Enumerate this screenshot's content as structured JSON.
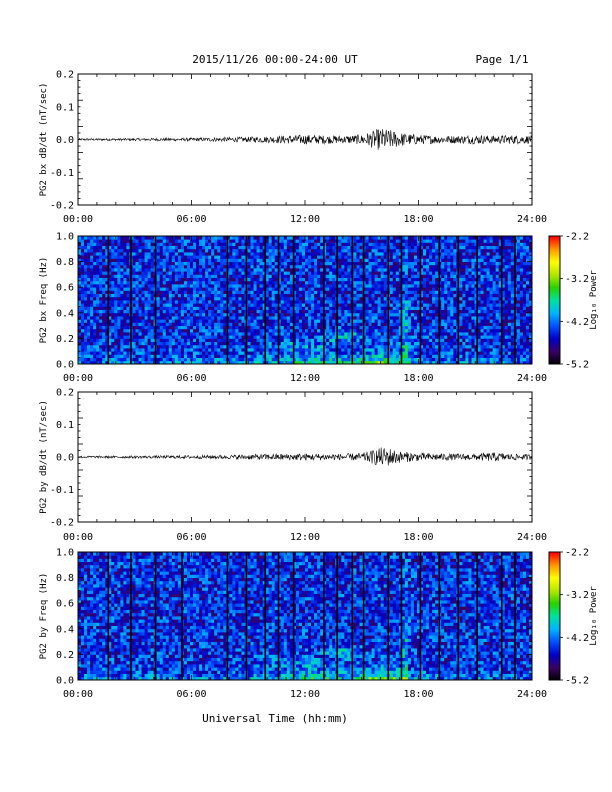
{
  "header": {
    "title": "2015/11/26  00:00-24:00 UT",
    "page_label": "Page 1/1"
  },
  "xlabel": "Universal Time (hh:mm)",
  "colors": {
    "colormap": [
      "#000000",
      "#3a0064",
      "#0000c8",
      "#0050ff",
      "#00b4ff",
      "#00e0a0",
      "#28d200",
      "#b4e600",
      "#ffff00",
      "#ff9600",
      "#ff0000"
    ],
    "gap_bar": "#000000"
  },
  "chart_data": [
    {
      "type": "line",
      "ylabel": "PG2 bx dB/dt (nT/sec)",
      "xlim_hours": [
        0,
        24
      ],
      "x_ticks": [
        "00:00",
        "06:00",
        "12:00",
        "18:00",
        "24:00"
      ],
      "ylim": [
        -0.2,
        0.2
      ],
      "y_ticks": [
        "0.2",
        "0.1",
        "0.0",
        "-0.1",
        "-0.2"
      ],
      "envelope": {
        "time_hours": [
          0,
          4,
          6,
          9,
          10,
          11,
          12,
          13,
          14,
          15,
          15.5,
          16,
          16.5,
          17,
          17.5,
          18,
          19,
          20,
          21,
          22,
          23,
          24
        ],
        "amplitude": [
          0.003,
          0.004,
          0.005,
          0.008,
          0.01,
          0.012,
          0.015,
          0.013,
          0.012,
          0.015,
          0.025,
          0.035,
          0.03,
          0.022,
          0.018,
          0.015,
          0.012,
          0.012,
          0.014,
          0.012,
          0.014,
          0.012
        ]
      }
    },
    {
      "type": "heatmap",
      "ylabel": "PG2 bx Freq (Hz)",
      "xlim_hours": [
        0,
        24
      ],
      "x_ticks": [
        "00:00",
        "06:00",
        "12:00",
        "18:00",
        "24:00"
      ],
      "ylim": [
        0,
        1.0
      ],
      "y_ticks": [
        "1.0",
        "0.8",
        "0.6",
        "0.4",
        "0.2",
        "0.0"
      ],
      "colorbar": {
        "label": "Log₁₀ Power",
        "range": [
          -5.2,
          -2.2
        ],
        "ticks": [
          "-2.2",
          "-3.2",
          "-4.2",
          "-5.2"
        ]
      },
      "data_gaps_hours": [
        1.6,
        2.8,
        4.1,
        7.9,
        8.9,
        9.9,
        10.6,
        11.4,
        13.0,
        13.7,
        14.5,
        15.1,
        16.4,
        17.1,
        18.1,
        19.1,
        20.1,
        21.1,
        22.4,
        23.1
      ]
    },
    {
      "type": "line",
      "ylabel": "PG2 by dB/dt (nT/sec)",
      "xlim_hours": [
        0,
        24
      ],
      "x_ticks": [
        "00:00",
        "06:00",
        "12:00",
        "18:00",
        "24:00"
      ],
      "ylim": [
        -0.2,
        0.2
      ],
      "y_ticks": [
        "0.2",
        "0.1",
        "0.0",
        "-0.1",
        "-0.2"
      ],
      "envelope": {
        "time_hours": [
          0,
          4,
          6,
          8,
          9,
          10,
          11,
          12,
          13,
          14,
          15,
          15.5,
          16,
          16.5,
          17,
          18,
          19,
          20,
          21,
          22,
          23,
          24
        ],
        "amplitude": [
          0.003,
          0.004,
          0.005,
          0.006,
          0.008,
          0.009,
          0.01,
          0.011,
          0.01,
          0.01,
          0.012,
          0.02,
          0.03,
          0.028,
          0.018,
          0.012,
          0.011,
          0.01,
          0.01,
          0.014,
          0.01,
          0.008
        ]
      }
    },
    {
      "type": "heatmap",
      "ylabel": "PG2 by Freq (Hz)",
      "xlim_hours": [
        0,
        24
      ],
      "x_ticks": [
        "00:00",
        "06:00",
        "12:00",
        "18:00",
        "24:00"
      ],
      "ylim": [
        0,
        1.0
      ],
      "y_ticks": [
        "1.0",
        "0.8",
        "0.6",
        "0.4",
        "0.2",
        "0.0"
      ],
      "colorbar": {
        "label": "Log₁₀ Power",
        "range": [
          -5.2,
          -2.2
        ],
        "ticks": [
          "-2.2",
          "-3.2",
          "-4.2",
          "-5.2"
        ]
      },
      "data_gaps_hours": [
        1.6,
        2.8,
        4.1,
        5.5,
        7.9,
        8.9,
        9.9,
        10.6,
        11.4,
        13.0,
        13.7,
        14.5,
        15.1,
        16.4,
        17.1,
        18.1,
        19.1,
        20.1,
        21.1,
        22.4,
        23.1
      ]
    }
  ]
}
